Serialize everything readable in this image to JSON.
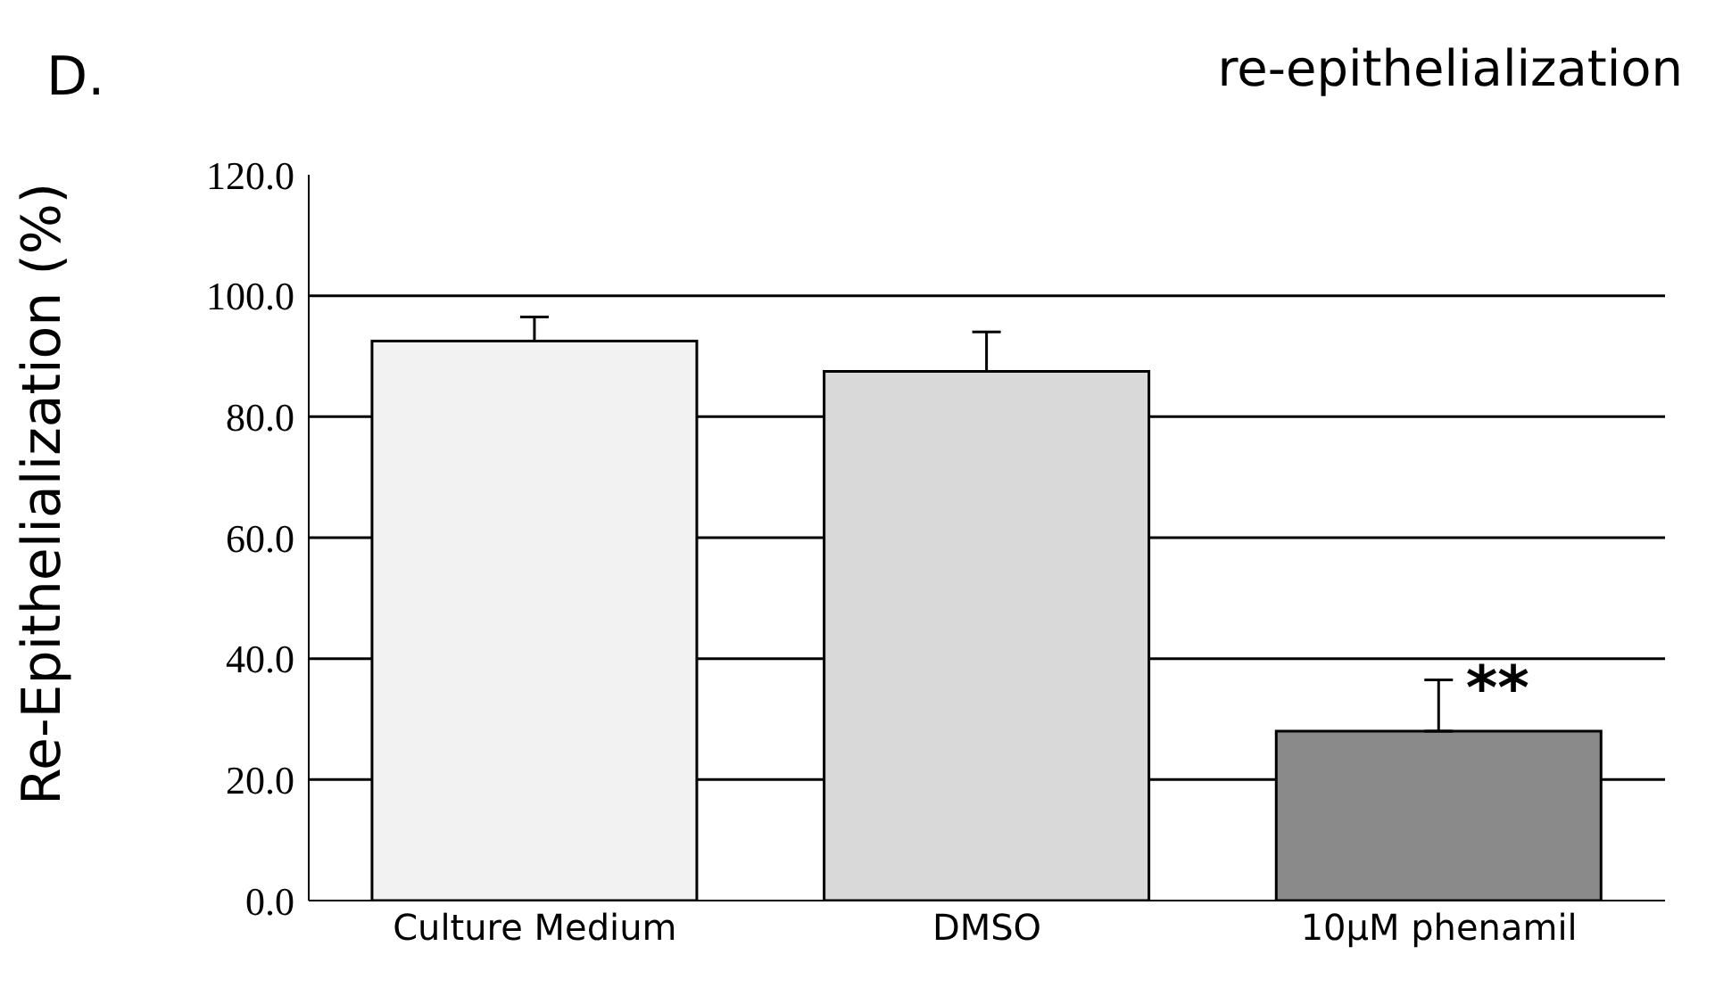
{
  "chart_data": {
    "type": "bar",
    "title": "re-epithelialization",
    "ylabel": "Re-Epithelialization (%)",
    "categories": [
      "Culture Medium",
      "DMSO",
      "10μM phenamil"
    ],
    "values": [
      92.5,
      87.5,
      28
    ],
    "colors": [
      "#f2f2f2",
      "#d9d9d9",
      "#8a8a8a"
    ],
    "errors": [
      [
        92.5,
        96.5
      ],
      [
        87.5,
        94
      ],
      [
        28,
        36.5
      ]
    ],
    "ylim": [
      0,
      120
    ],
    "yticks": [
      {
        "value": 0,
        "label": "0.0"
      },
      {
        "value": 20,
        "label": "20.0"
      },
      {
        "value": 40,
        "label": "40.0"
      },
      {
        "value": 60,
        "label": "60.0"
      },
      {
        "value": 80,
        "label": "80.0"
      },
      {
        "value": 100,
        "label": "100.0"
      },
      {
        "value": 120,
        "label": "120.0"
      }
    ],
    "grid": "y",
    "annotations": [
      "D.",
      {
        "text": "**",
        "x": "10μM phenamil",
        "y": 36.5
      }
    ]
  }
}
